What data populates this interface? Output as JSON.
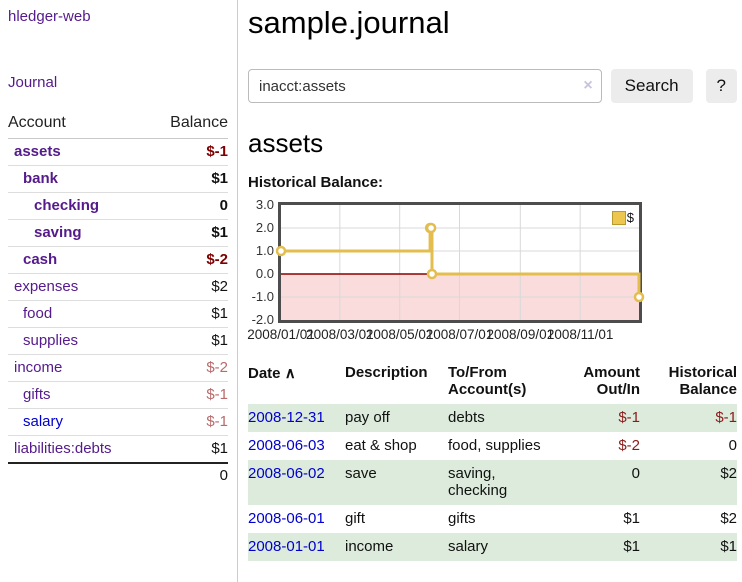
{
  "colors": {
    "link_purple": "#551a8b",
    "link_blue": "#0000cc",
    "negative_strong": "#7f0000",
    "negative_soft": "#b96a6a",
    "row_stripe_green": "#dcebdb",
    "chart_line_gold": "#e4bd4f",
    "chart_negative_fill": "#fadcdc",
    "chart_zero_line": "#8b0000",
    "chart_grid": "#d9d9d9",
    "chart_border": "#4d4d4d"
  },
  "sidebar": {
    "brand": "hledger-web",
    "nav_journal": "Journal",
    "col_account": "Account",
    "col_balance": "Balance",
    "accounts": [
      {
        "name": "assets",
        "balance": "$-1"
      },
      {
        "name": "bank",
        "balance": "$1"
      },
      {
        "name": "checking",
        "balance": "0"
      },
      {
        "name": "saving",
        "balance": "$1"
      },
      {
        "name": "cash",
        "balance": "$-2"
      },
      {
        "name": "expenses",
        "balance": "$2"
      },
      {
        "name": "food",
        "balance": "$1"
      },
      {
        "name": "supplies",
        "balance": "$1"
      },
      {
        "name": "income",
        "balance": "$-2"
      },
      {
        "name": "gifts",
        "balance": "$-1"
      },
      {
        "name": "salary",
        "balance": "$-1"
      },
      {
        "name": "liabilities:debts",
        "balance": "$1"
      }
    ],
    "total": "0"
  },
  "main": {
    "title": "sample.journal",
    "search": {
      "value": "inacct:assets",
      "clear": "×",
      "button": "Search",
      "help": "?"
    },
    "heading": "assets",
    "chart_heading": "Historical Balance:"
  },
  "chart_data": {
    "type": "line",
    "step": true,
    "title": "Historical Balance:",
    "series": [
      {
        "name": "$",
        "points": [
          {
            "x": "2008-01-01",
            "y": 1
          },
          {
            "x": "2008-06-01",
            "y": 2
          },
          {
            "x": "2008-06-02",
            "y": 2
          },
          {
            "x": "2008-06-03",
            "y": 0
          },
          {
            "x": "2008-12-31",
            "y": -1
          }
        ]
      }
    ],
    "x_range": [
      "2008-01-01",
      "2008-12-31"
    ],
    "ylim": [
      -2,
      3
    ],
    "yticks": [
      3.0,
      2.0,
      1.0,
      0.0,
      -1.0,
      -2.0
    ],
    "xticks": [
      "2008/01/01",
      "2008/03/01",
      "2008/05/01",
      "2008/07/01",
      "2008/09/01",
      "2008/11/01"
    ],
    "legend": {
      "label": "$",
      "position": "top-right"
    },
    "grid": true
  },
  "register": {
    "headers": {
      "date": "Date",
      "sort_indicator": "∧",
      "description": "Description",
      "tofrom": "To/From Account(s)",
      "amount": "Amount Out/In",
      "balance": "Historical Balance"
    },
    "rows": [
      {
        "date": "2008-12-31",
        "description": "pay off",
        "tofrom": "debts",
        "amount": "$-1",
        "balance": "$-1"
      },
      {
        "date": "2008-06-03",
        "description": "eat & shop",
        "tofrom": "food, supplies",
        "amount": "$-2",
        "balance": "0"
      },
      {
        "date": "2008-06-02",
        "description": "save",
        "tofrom": "saving, checking",
        "amount": "0",
        "balance": "$2"
      },
      {
        "date": "2008-06-01",
        "description": "gift",
        "tofrom": "gifts",
        "amount": "$1",
        "balance": "$2"
      },
      {
        "date": "2008-01-01",
        "description": "income",
        "tofrom": "salary",
        "amount": "$1",
        "balance": "$1"
      }
    ]
  }
}
